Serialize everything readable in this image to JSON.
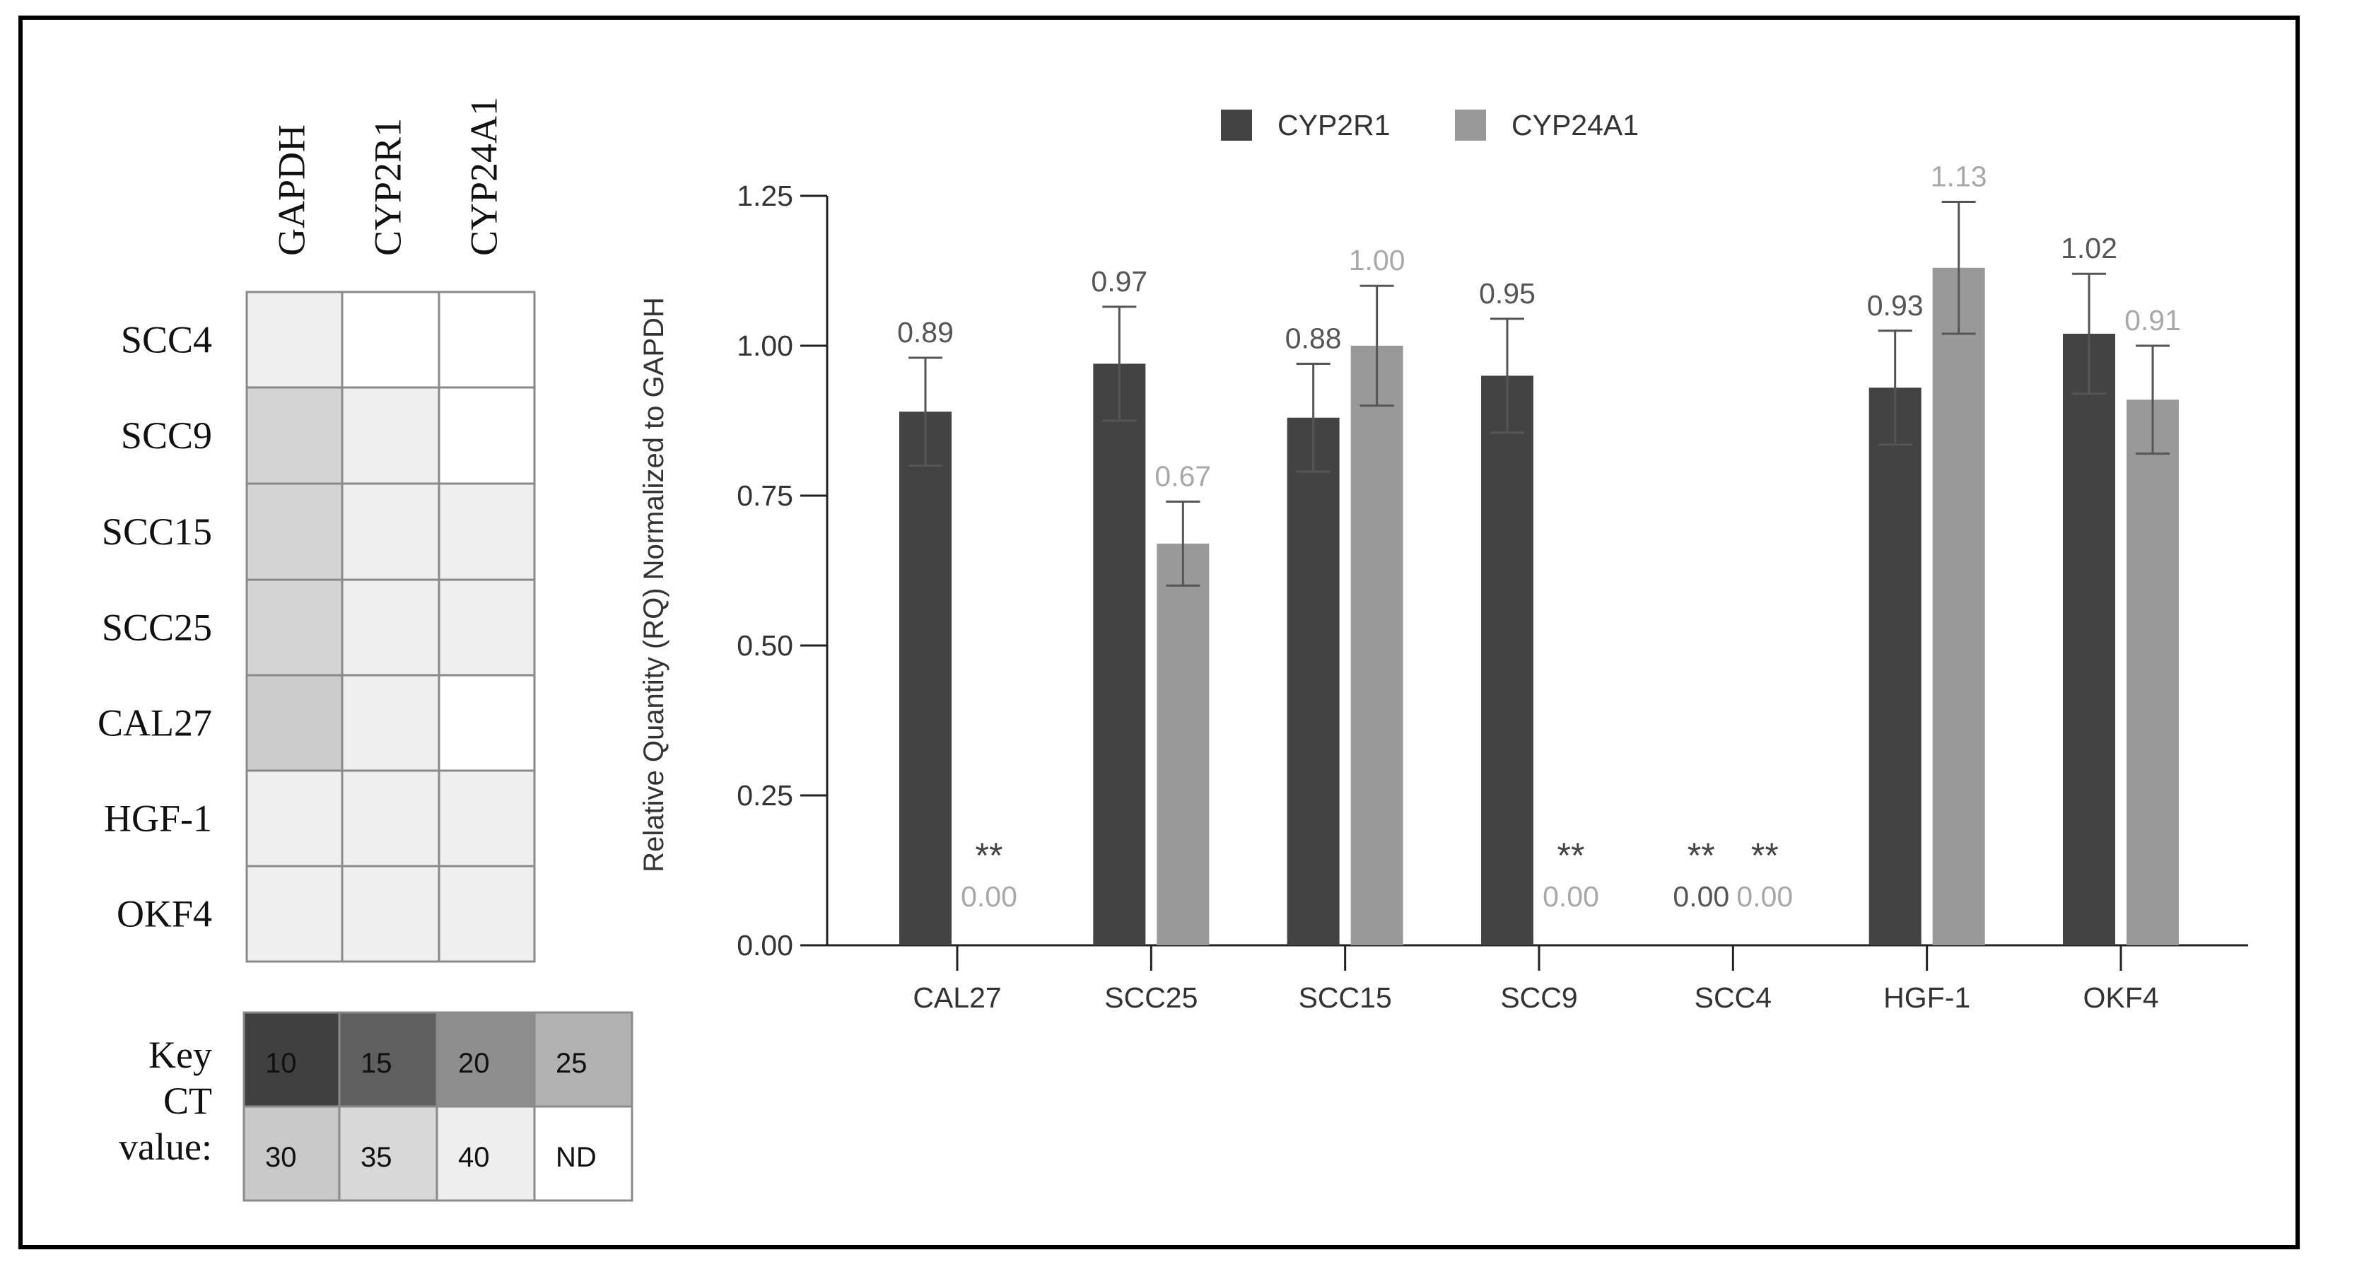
{
  "heatmap": {
    "columns": [
      "GAPDH",
      "CYP2R1",
      "CYP24A1"
    ],
    "rows": [
      {
        "label": "SCC4",
        "shades": [
          "#efefef",
          "#ffffff",
          "#ffffff"
        ]
      },
      {
        "label": "SCC9",
        "shades": [
          "#d4d4d4",
          "#efefef",
          "#ffffff"
        ]
      },
      {
        "label": "SCC15",
        "shades": [
          "#d4d4d4",
          "#efefef",
          "#efefef"
        ]
      },
      {
        "label": "SCC25",
        "shades": [
          "#d4d4d4",
          "#efefef",
          "#efefef"
        ]
      },
      {
        "label": "CAL27",
        "shades": [
          "#cccccc",
          "#efefef",
          "#ffffff"
        ]
      },
      {
        "label": "HGF-1",
        "shades": [
          "#efefef",
          "#efefef",
          "#efefef"
        ]
      },
      {
        "label": "OKF4",
        "shades": [
          "#efefef",
          "#efefef",
          "#efefef"
        ]
      }
    ],
    "key": {
      "label_lines": [
        "Key",
        "CT",
        "value:"
      ],
      "cells": [
        {
          "text": "10",
          "shade": "#404040"
        },
        {
          "text": "15",
          "shade": "#5f5f5f"
        },
        {
          "text": "20",
          "shade": "#8e8e8e"
        },
        {
          "text": "25",
          "shade": "#b2b2b2"
        },
        {
          "text": "30",
          "shade": "#c8c8c8"
        },
        {
          "text": "35",
          "shade": "#d8d8d8"
        },
        {
          "text": "40",
          "shade": "#eeeeee"
        },
        {
          "text": "ND",
          "shade": "#ffffff"
        }
      ]
    }
  },
  "chart_data": {
    "type": "bar",
    "title": "",
    "xlabel": "",
    "ylabel": "Relative Quantity (RQ) Normalized to GAPDH",
    "ylim": [
      0,
      1.25
    ],
    "yticks": [
      "0.00",
      "0.25",
      "0.50",
      "0.75",
      "1.00",
      "1.25"
    ],
    "categories": [
      "CAL27",
      "SCC25",
      "SCC15",
      "SCC9",
      "SCC4",
      "HGF-1",
      "OKF4"
    ],
    "series": [
      {
        "name": "CYP2R1",
        "color": "#434343",
        "label_color": "#555555",
        "values": [
          0.89,
          0.97,
          0.88,
          0.95,
          0.0,
          0.93,
          1.02
        ],
        "errors": [
          0.09,
          0.095,
          0.09,
          0.095,
          0,
          0.095,
          0.1
        ],
        "labels": [
          "0.89",
          "0.97",
          "0.88",
          "0.95",
          "0.00",
          "0.93",
          "1.02"
        ],
        "stars": [
          "",
          "",
          "",
          "",
          "**",
          "",
          ""
        ]
      },
      {
        "name": "CYP24A1",
        "color": "#999999",
        "label_color": "#a8a8a8",
        "values": [
          0.0,
          0.67,
          1.0,
          0.0,
          0.0,
          1.13,
          0.91
        ],
        "errors": [
          0,
          0.07,
          0.1,
          0,
          0,
          0.11,
          0.09
        ],
        "labels": [
          "0.00",
          "0.67",
          "1.00",
          "0.00",
          "0.00",
          "1.13",
          "0.91"
        ],
        "stars": [
          "**",
          "",
          "",
          "**",
          "**",
          "",
          ""
        ]
      }
    ],
    "legend_position": "top-center",
    "grid": false
  }
}
